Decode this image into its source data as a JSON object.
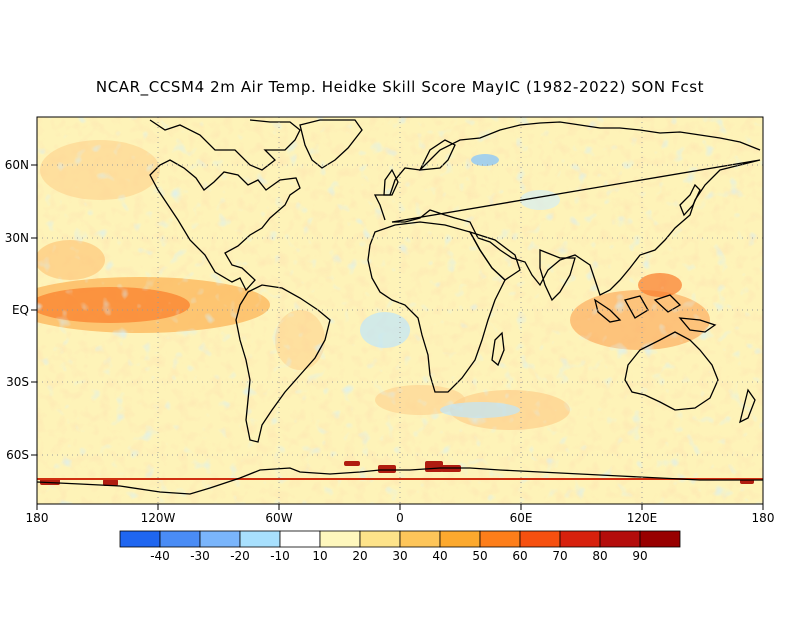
{
  "title": "NCAR_CCSM4 2m Air Temp. Heidke Skill Score MayIC (1982-2022) SON Fcst",
  "map": {
    "lat_labels": [
      "60N",
      "30N",
      "EQ",
      "30S",
      "60S"
    ],
    "lon_labels": [
      "180",
      "120W",
      "60W",
      "0",
      "60E",
      "120E",
      "180"
    ],
    "grid": "dotted",
    "projection": "cylindrical equidistant"
  },
  "colorbar": {
    "labels": [
      "-40",
      "-30",
      "-20",
      "-10",
      "10",
      "20",
      "30",
      "40",
      "50",
      "60",
      "70",
      "80",
      "90"
    ],
    "colors": [
      "#1f66f0",
      "#4a8cf5",
      "#7ab5fb",
      "#a8e0fd",
      "#ffffff",
      "#fef7bd",
      "#fde38a",
      "#fdc55a",
      "#fca92e",
      "#fd7e1a",
      "#f6500f",
      "#d7210d",
      "#b40d0b",
      "#980000"
    ]
  },
  "palette": {
    "coastline": "#000000",
    "grid": "#9a9a9a",
    "frame": "#000000"
  }
}
